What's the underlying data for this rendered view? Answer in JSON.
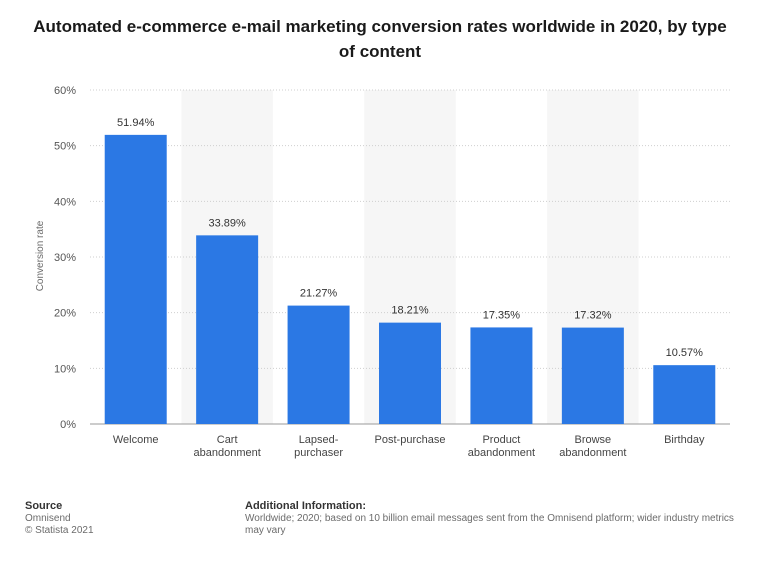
{
  "title": "Automated e-commerce e-mail marketing conversion rates worldwide in 2020, by type of content",
  "colors": {
    "bar": "#2b78e4",
    "band": "#f6f6f6",
    "grid": "#cfcfcf"
  },
  "chart_data": {
    "type": "bar",
    "title": "Automated e-commerce e-mail marketing conversion rates worldwide in 2020, by type of content",
    "ylabel": "Conversion rate",
    "xlabel": "",
    "ylim": [
      0,
      60
    ],
    "y_ticks": [
      "0%",
      "10%",
      "20%",
      "30%",
      "40%",
      "50%",
      "60%"
    ],
    "y_tick_values": [
      0,
      10,
      20,
      30,
      40,
      50,
      60
    ],
    "categories": [
      [
        "Welcome"
      ],
      [
        "Cart",
        "abandonment"
      ],
      [
        "Lapsed-",
        "purchaser"
      ],
      [
        "Post-purchase"
      ],
      [
        "Product",
        "abandonment"
      ],
      [
        "Browse",
        "abandonment"
      ],
      [
        "Birthday"
      ]
    ],
    "values": [
      51.94,
      33.89,
      21.27,
      18.21,
      17.35,
      17.32,
      10.57
    ],
    "data_labels": [
      "51.94%",
      "33.89%",
      "21.27%",
      "18.21%",
      "17.35%",
      "17.32%",
      "10.57%"
    ],
    "grid": true,
    "legend": "none"
  },
  "footer": {
    "source_heading": "Source",
    "source_name": "Omnisend",
    "copyright": "© Statista 2021",
    "info_heading": "Additional Information:",
    "info_text": "Worldwide; 2020; based on 10 billion email messages sent from the Omnisend platform; wider industry metrics may vary"
  }
}
